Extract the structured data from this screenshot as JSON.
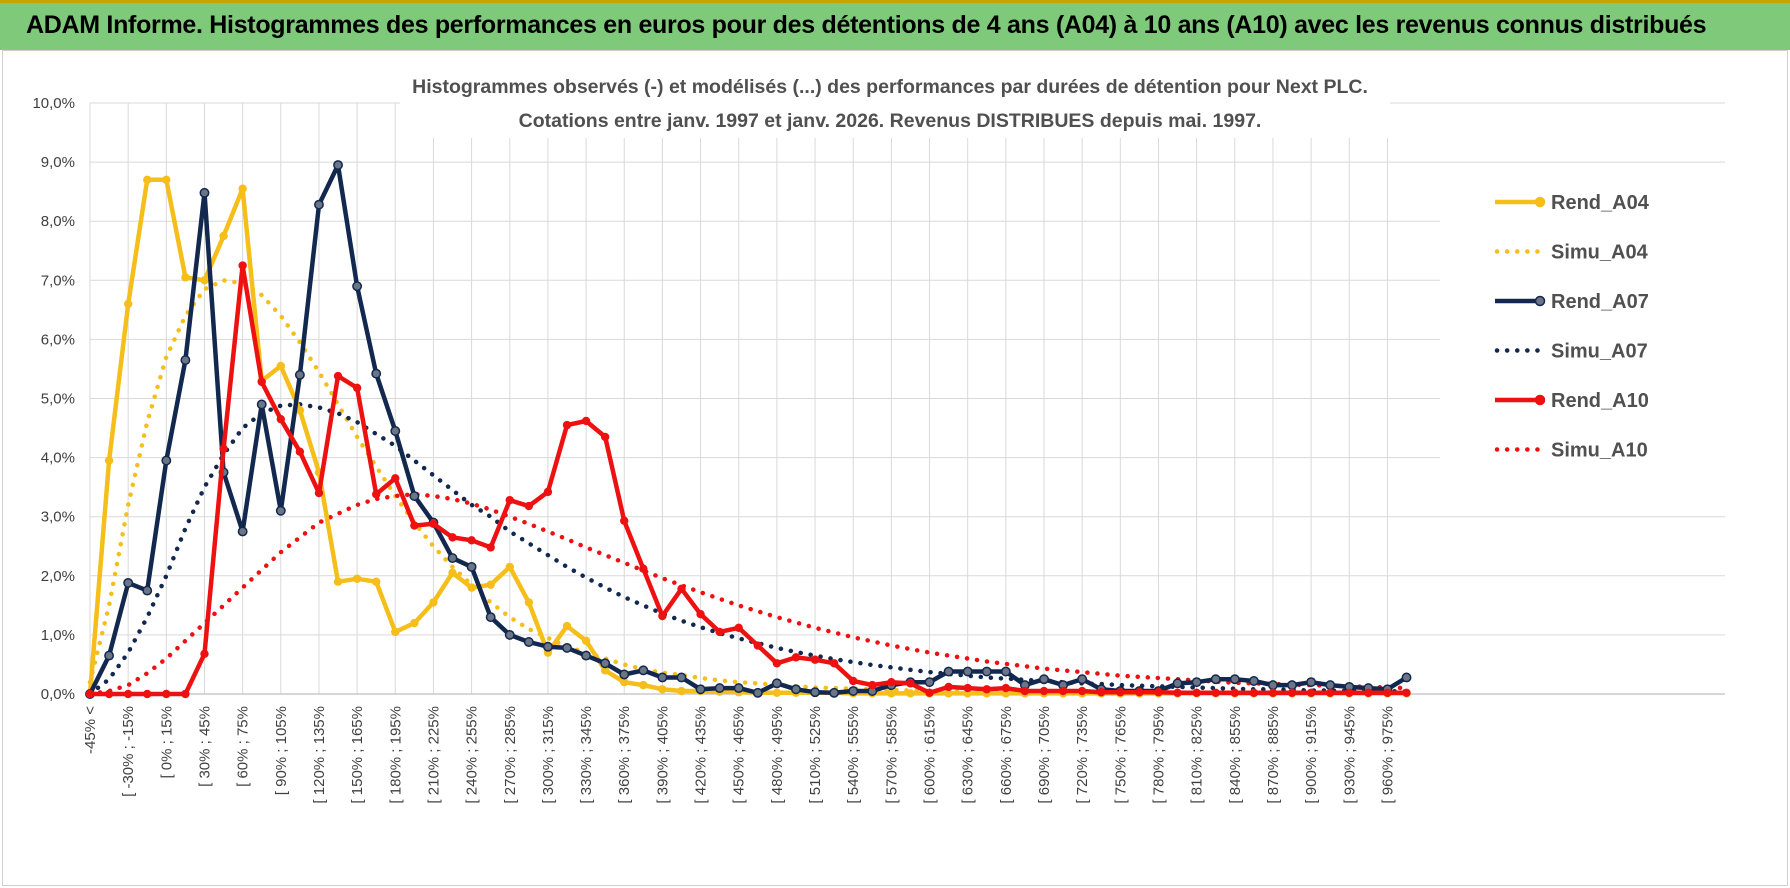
{
  "header": {
    "title": "ADAM Informe. Histogrammes des performances en euros pour des détentions de 4 ans (A04) à 10 ans (A10) avec les revenus connus distribués"
  },
  "colors": {
    "banner": "#7fc97a",
    "A04": "#f5be1a",
    "A07": "#12284f",
    "A10": "#ee1111",
    "grid": "#d9d9d9"
  },
  "chart_data": {
    "type": "line",
    "title_line1": "Histogrammes observés (-) et modélisés (...) des performances par durées de détention pour Next PLC.",
    "title_line2": "Cotations entre janv. 1997 et janv. 2026. Revenus DISTRIBUES depuis mai. 1997.",
    "ylim": [
      0,
      10
    ],
    "y_ticks": [
      "0,0%",
      "1,0%",
      "2,0%",
      "3,0%",
      "4,0%",
      "5,0%",
      "6,0%",
      "7,0%",
      "8,0%",
      "9,0%",
      "10,0%"
    ],
    "x_tick_labels": [
      "-45% <",
      "[ -30% ; -15%",
      "[ 0% ; 15%",
      "[ 30% ; 45%",
      "[ 60% ; 75%",
      "[ 90% ; 105%",
      "[ 120% ; 135%",
      "[ 150% ; 165%",
      "[ 180% ; 195%",
      "[ 210% ; 225%",
      "[ 240% ; 255%",
      "[ 270% ; 285%",
      "[ 300% ; 315%",
      "[ 330% ; 345%",
      "[ 360% ; 375%",
      "[ 390% ; 405%",
      "[ 420% ; 435%",
      "[ 450% ; 465%",
      "[ 480% ; 495%",
      "[ 510% ; 525%",
      "[ 540% ; 555%",
      "[ 570% ; 585%",
      "[ 600% ; 615%",
      "[ 630% ; 645%",
      "[ 660% ; 675%",
      "[ 690% ; 705%",
      "[ 720% ; 735%",
      "[ 750% ; 765%",
      "[ 780% ; 795%",
      "[ 810% ; 825%",
      "[ 840% ; 855%",
      "[ 870% ; 885%",
      "[ 900% ; 915%",
      "[ 930% ; 945%",
      "[ 960% ; 975%"
    ],
    "legend": [
      "Rend_A04",
      "Simu_A04",
      "Rend_A07",
      "Simu_A07",
      "Rend_A10",
      "Simu_A10"
    ],
    "series": [
      {
        "name": "Rend_A04",
        "style": "solid",
        "color": "#f5be1a",
        "values": [
          0,
          3.95,
          6.6,
          8.7,
          8.7,
          7.05,
          7.0,
          7.75,
          8.55,
          5.3,
          5.55,
          4.8,
          3.75,
          1.9,
          1.95,
          1.9,
          1.05,
          1.2,
          1.55,
          2.05,
          1.8,
          1.85,
          2.15,
          1.55,
          0.7,
          1.15,
          0.9,
          0.4,
          0.2,
          0.15,
          0.08,
          0.05,
          0.05,
          0.04,
          0.03,
          0.02,
          0.02,
          0.02,
          0.02,
          0.02,
          0.01,
          0.01,
          0.01,
          0.01,
          0.01,
          0.01,
          0.01,
          0.01,
          0.01,
          0.01,
          0.01,
          0.01,
          0.01,
          0.01,
          0.01,
          0.01,
          0.01,
          0.01,
          0.01,
          0.01,
          0.01,
          0.01,
          0.01,
          0.01,
          0.01,
          0.01,
          0.01,
          0.01,
          0.01,
          0.01
        ]
      },
      {
        "name": "Simu_A04",
        "style": "dotted",
        "color": "#f5be1a",
        "values": [
          0.2,
          1.5,
          3.2,
          4.6,
          5.7,
          6.4,
          6.85,
          7.0,
          6.95,
          6.75,
          6.4,
          5.95,
          5.45,
          4.9,
          4.35,
          3.85,
          3.35,
          2.9,
          2.5,
          2.15,
          1.85,
          1.55,
          1.3,
          1.1,
          0.95,
          0.8,
          0.7,
          0.6,
          0.5,
          0.42,
          0.36,
          0.32,
          0.27,
          0.23,
          0.2,
          0.18,
          0.15,
          0.13,
          0.11,
          0.1,
          0.09,
          0.08,
          0.07,
          0.06,
          0.05,
          0.05,
          0.04,
          0.04,
          0.03,
          0.03,
          0.03,
          0.02,
          0.02,
          0.02,
          0.02,
          0.02,
          0.01,
          0.01,
          0.01,
          0.01,
          0.01,
          0.01,
          0.01,
          0.01,
          0.01,
          0.01,
          0.01,
          0.01,
          0.01,
          0.01
        ]
      },
      {
        "name": "Rend_A07",
        "style": "solid",
        "color": "#12284f",
        "values": [
          0,
          0.65,
          1.88,
          1.75,
          3.95,
          5.65,
          8.48,
          3.75,
          2.75,
          4.9,
          3.1,
          5.4,
          8.28,
          8.95,
          6.9,
          5.42,
          4.45,
          3.35,
          2.9,
          2.3,
          2.15,
          1.3,
          1.0,
          0.88,
          0.8,
          0.78,
          0.65,
          0.52,
          0.33,
          0.4,
          0.28,
          0.28,
          0.08,
          0.1,
          0.1,
          0.02,
          0.18,
          0.08,
          0.03,
          0.02,
          0.05,
          0.05,
          0.15,
          0.2,
          0.2,
          0.38,
          0.38,
          0.38,
          0.38,
          0.15,
          0.25,
          0.15,
          0.25,
          0.08,
          0.05,
          0.05,
          0.05,
          0.18,
          0.2,
          0.25,
          0.25,
          0.22,
          0.15,
          0.15,
          0.2,
          0.15,
          0.12,
          0.1,
          0.08,
          0.28
        ]
      },
      {
        "name": "Simu_A07",
        "style": "dotted",
        "color": "#12284f",
        "values": [
          0.0,
          0.25,
          0.7,
          1.3,
          2.0,
          2.8,
          3.5,
          4.05,
          4.5,
          4.75,
          4.88,
          4.9,
          4.85,
          4.75,
          4.6,
          4.4,
          4.2,
          3.95,
          3.7,
          3.45,
          3.2,
          3.0,
          2.75,
          2.55,
          2.35,
          2.15,
          1.97,
          1.8,
          1.64,
          1.5,
          1.36,
          1.24,
          1.13,
          1.03,
          0.94,
          0.86,
          0.78,
          0.71,
          0.65,
          0.59,
          0.54,
          0.49,
          0.45,
          0.41,
          0.37,
          0.34,
          0.31,
          0.28,
          0.26,
          0.24,
          0.22,
          0.2,
          0.18,
          0.17,
          0.15,
          0.14,
          0.13,
          0.12,
          0.11,
          0.1,
          0.09,
          0.08,
          0.08,
          0.07,
          0.06,
          0.06,
          0.05,
          0.05,
          0.05,
          0.04
        ]
      },
      {
        "name": "Rend_A10",
        "style": "solid",
        "color": "#ee1111",
        "values": [
          0,
          0,
          0,
          0,
          0,
          0,
          0.68,
          4.15,
          7.25,
          5.28,
          4.65,
          4.1,
          3.4,
          5.38,
          5.18,
          3.38,
          3.65,
          2.85,
          2.88,
          2.65,
          2.6,
          2.48,
          3.28,
          3.18,
          3.42,
          4.55,
          4.62,
          4.35,
          2.93,
          2.12,
          1.32,
          1.78,
          1.35,
          1.05,
          1.12,
          0.82,
          0.52,
          0.62,
          0.58,
          0.52,
          0.22,
          0.15,
          0.2,
          0.18,
          0.02,
          0.12,
          0.1,
          0.08,
          0.1,
          0.05,
          0.05,
          0.05,
          0.05,
          0.03,
          0.03,
          0.03,
          0.03,
          0.02,
          0.02,
          0.02,
          0.02,
          0.02,
          0.02,
          0.02,
          0.02,
          0.02,
          0.02,
          0.02,
          0.02,
          0.02
        ]
      },
      {
        "name": "Simu_A10",
        "style": "dotted",
        "color": "#ee1111",
        "values": [
          0.0,
          0.05,
          0.15,
          0.35,
          0.6,
          0.9,
          1.2,
          1.5,
          1.8,
          2.1,
          2.4,
          2.65,
          2.9,
          3.05,
          3.2,
          3.3,
          3.35,
          3.38,
          3.35,
          3.3,
          3.22,
          3.12,
          3.0,
          2.88,
          2.75,
          2.62,
          2.48,
          2.35,
          2.22,
          2.09,
          1.96,
          1.84,
          1.72,
          1.61,
          1.5,
          1.4,
          1.3,
          1.21,
          1.12,
          1.04,
          0.96,
          0.89,
          0.82,
          0.76,
          0.7,
          0.65,
          0.6,
          0.55,
          0.51,
          0.47,
          0.43,
          0.4,
          0.37,
          0.34,
          0.31,
          0.29,
          0.27,
          0.25,
          0.23,
          0.21,
          0.19,
          0.18,
          0.17,
          0.16,
          0.15,
          0.14,
          0.13,
          0.12,
          0.11,
          0.1
        ]
      }
    ]
  }
}
